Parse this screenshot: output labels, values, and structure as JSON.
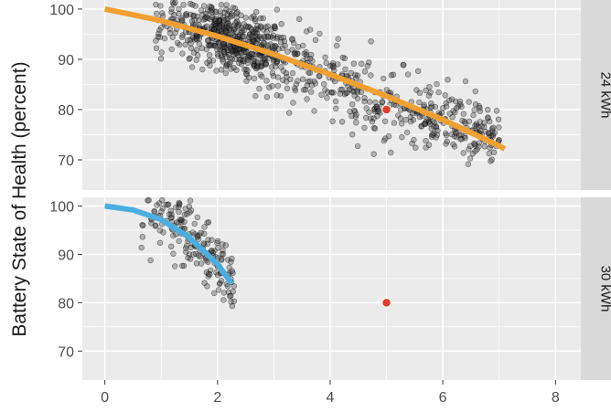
{
  "chart_data": {
    "type": "scatter",
    "ylabel": "Battery State of Health (percent)",
    "xlim": [
      -0.4,
      8.45
    ],
    "x_ticks": [
      0,
      2,
      4,
      6,
      8
    ],
    "grid": true,
    "colors": {
      "panel_bg": "#ebebeb",
      "strip_bg": "#d9d9d9",
      "grid": "#ffffff",
      "points": "#333333",
      "reference_point": "#e0402a",
      "curve_24": "#f0a030",
      "curve_30": "#4aaee0"
    },
    "panels": [
      {
        "strip_label": "24 kWh",
        "ylim": [
          64,
          101.8
        ],
        "y_ticks": [
          70,
          80,
          90,
          100
        ],
        "fit_curve": {
          "color": "#f0a030",
          "points": [
            [
              0,
              100
            ],
            [
              1,
              97.7
            ],
            [
              2,
              94.6
            ],
            [
              3,
              91
            ],
            [
              4,
              87
            ],
            [
              5,
              82.7
            ],
            [
              6,
              78
            ],
            [
              7,
              72.8
            ],
            [
              7.1,
              72.2
            ]
          ]
        },
        "reference_point": [
          5,
          80
        ],
        "scatter": {
          "x_range": [
            0.9,
            7.0
          ],
          "count": 950,
          "density_peak_x": 2.3,
          "trend": [
            [
              1,
              98
            ],
            [
              2,
              94.5
            ],
            [
              3,
              91.5
            ],
            [
              4,
              86
            ],
            [
              5,
              81
            ],
            [
              6,
              78.5
            ],
            [
              7,
              74
            ]
          ],
          "spread": 3.5
        }
      },
      {
        "strip_label": "30 kWh",
        "ylim": [
          64,
          101.8
        ],
        "y_ticks": [
          70,
          80,
          90,
          100
        ],
        "fit_curve": {
          "color": "#4aaee0",
          "points": [
            [
              0,
              100
            ],
            [
              0.5,
              99.2
            ],
            [
              1,
              97.2
            ],
            [
              1.5,
              93.5
            ],
            [
              2,
              88
            ],
            [
              2.25,
              84
            ]
          ]
        },
        "reference_point": [
          5,
          80
        ],
        "scatter": {
          "x_range": [
            0.6,
            2.3
          ],
          "count": 180,
          "density_peak_x": 1.8,
          "trend": [
            [
              0.7,
              99.5
            ],
            [
              1.2,
              97
            ],
            [
              1.6,
              93
            ],
            [
              2,
              88
            ],
            [
              2.3,
              84
            ]
          ],
          "spread": 3.5
        }
      }
    ]
  }
}
